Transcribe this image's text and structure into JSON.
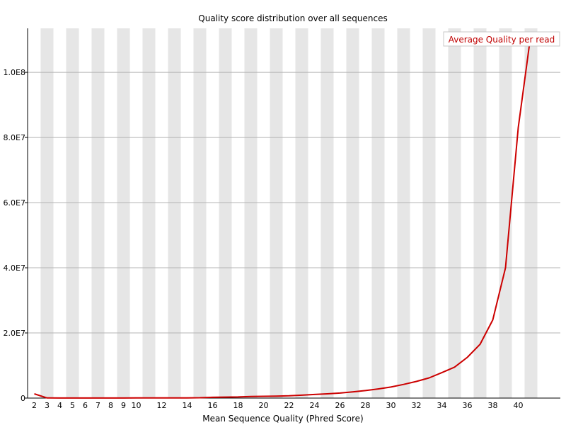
{
  "chart_data": {
    "type": "line",
    "title": "Quality score distribution over all sequences",
    "xlabel": "Mean Sequence Quality (Phred Score)",
    "ylabel": "",
    "x_ticks": [
      2,
      3,
      4,
      5,
      6,
      7,
      8,
      9,
      10,
      12,
      14,
      16,
      18,
      20,
      22,
      24,
      26,
      28,
      30,
      32,
      34,
      36,
      38,
      40
    ],
    "y_ticks": [
      {
        "value": 0,
        "label": "0"
      },
      {
        "value": 20000000,
        "label": "2.0E7"
      },
      {
        "value": 40000000,
        "label": "4.0E7"
      },
      {
        "value": 60000000,
        "label": "6.0E7"
      },
      {
        "value": 80000000,
        "label": "8.0E7"
      },
      {
        "value": 100000000,
        "label": "1.0E8"
      }
    ],
    "ylim": [
      0,
      113500000
    ],
    "grid": true,
    "alternating_bands": true,
    "legend_position": "top-right",
    "series": [
      {
        "name": "Average Quality per read",
        "color": "#cc0000",
        "x": [
          2,
          3,
          4,
          5,
          6,
          7,
          8,
          9,
          10,
          11,
          12,
          13,
          14,
          15,
          16,
          17,
          18,
          19,
          20,
          21,
          22,
          23,
          24,
          25,
          26,
          27,
          28,
          29,
          30,
          31,
          32,
          33,
          34,
          35,
          36,
          37,
          38,
          39,
          40,
          41
        ],
        "values": [
          1300000,
          50000,
          20000,
          20000,
          20000,
          30000,
          30000,
          30000,
          40000,
          50000,
          60000,
          60000,
          70000,
          100000,
          250000,
          300000,
          350000,
          500000,
          550000,
          600000,
          700000,
          900000,
          1100000,
          1300000,
          1550000,
          1900000,
          2300000,
          2800000,
          3400000,
          4200000,
          5100000,
          6200000,
          7800000,
          9500000,
          12500000,
          16500000,
          24000000,
          40000000,
          83000000,
          112000000
        ]
      }
    ]
  }
}
